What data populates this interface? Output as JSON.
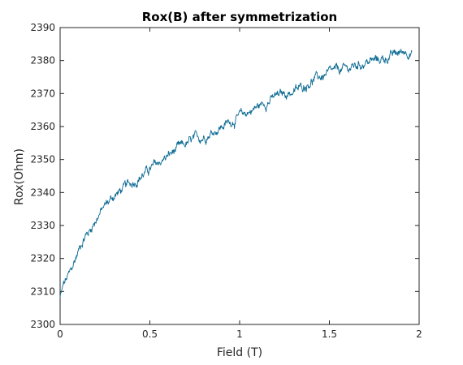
{
  "chart_data": {
    "type": "line",
    "title": "Rox(B) after symmetrization",
    "xlabel": "Field (T)",
    "ylabel": "Rox(Ohm)",
    "xlim": [
      0,
      2
    ],
    "ylim": [
      2300,
      2390
    ],
    "xticks": [
      "0",
      "0.5",
      "1",
      "1.5",
      "2"
    ],
    "yticks": [
      "2300",
      "2310",
      "2320",
      "2330",
      "2340",
      "2350",
      "2360",
      "2370",
      "2380",
      "2390"
    ],
    "grid": false,
    "box": true,
    "series": [
      {
        "color": "#0e6c94",
        "x": [
          0,
          0.02,
          0.04,
          0.06,
          0.08,
          0.1,
          0.12,
          0.14,
          0.16,
          0.18,
          0.2,
          0.25,
          0.3,
          0.35,
          0.4,
          0.45,
          0.5,
          0.55,
          0.6,
          0.65,
          0.7,
          0.75,
          0.8,
          0.85,
          0.9,
          0.95,
          1.0,
          1.05,
          1.1,
          1.15,
          1.2,
          1.25,
          1.3,
          1.35,
          1.4,
          1.45,
          1.5,
          1.55,
          1.6,
          1.65,
          1.7,
          1.75,
          1.8,
          1.85,
          1.9,
          1.93,
          1.96
        ],
        "y": [
          2308,
          2312,
          2314,
          2316,
          2319,
          2322,
          2325,
          2327,
          2328,
          2330,
          2332,
          2336,
          2339,
          2341,
          2343,
          2345,
          2347,
          2349,
          2351,
          2353,
          2354.5,
          2356,
          2357,
          2358.5,
          2360,
          2361.5,
          2363,
          2364.5,
          2366,
          2367.5,
          2369,
          2370,
          2370.5,
          2372,
          2374,
          2375,
          2376,
          2377,
          2377.5,
          2378.5,
          2379.5,
          2380,
          2380.5,
          2381.5,
          2382.5,
          2383,
          2382.5
        ]
      }
    ]
  }
}
